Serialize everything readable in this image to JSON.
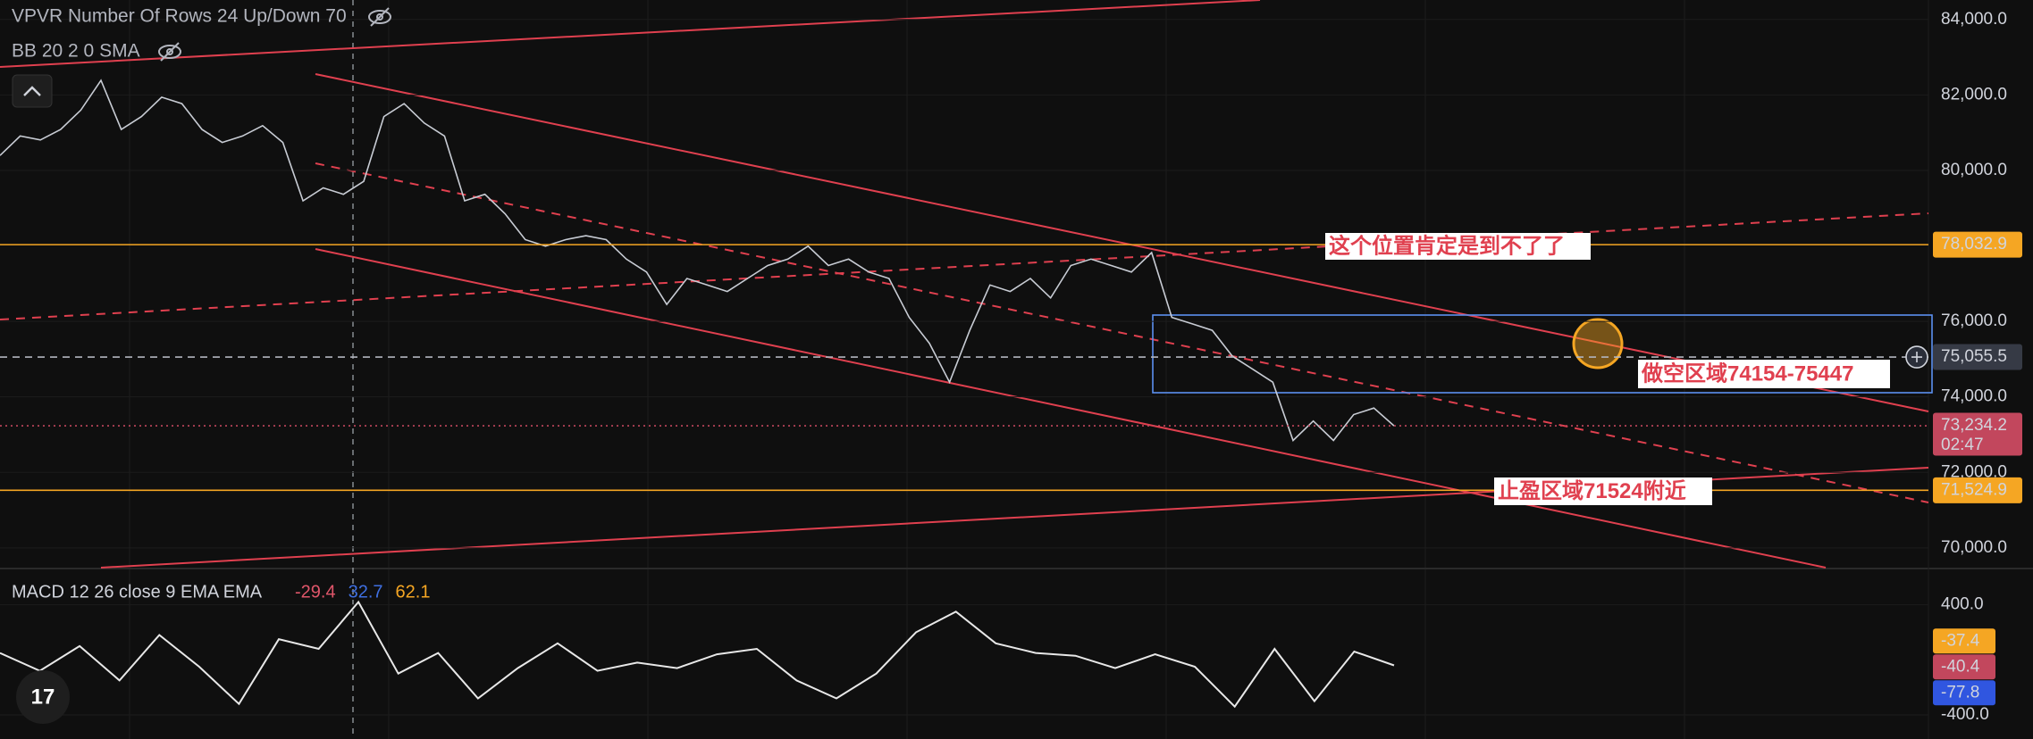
{
  "chart_data": [
    {
      "type": "line",
      "indicators": [
        "VPVR Number Of Rows 24 Up/Down 70",
        "BB 20 2 0 SMA"
      ],
      "values": [
        80396,
        80911,
        80808,
        81083,
        81598,
        82387,
        81083,
        81426,
        81941,
        81769,
        81083,
        80740,
        80911,
        81186,
        80740,
        79195,
        79538,
        79367,
        79710,
        81426,
        81769,
        81254,
        80911,
        79195,
        79367,
        78852,
        78166,
        77994,
        78166,
        78269,
        78166,
        77651,
        77308,
        76450,
        77136,
        76964,
        76793,
        77136,
        77479,
        77651,
        77994,
        77479,
        77651,
        77308,
        77136,
        76106,
        75420,
        74390,
        75763,
        76964,
        76793,
        77136,
        76621,
        77479,
        77651,
        77479,
        77308,
        77822,
        76106,
        75935,
        75763,
        75077,
        74734,
        74390,
        72846,
        73361,
        72846,
        73532,
        73704,
        73234
      ],
      "color": "#c8ccd4",
      "ylim": [
        69485,
        84515
      ],
      "yticks": [
        {
          "value": 84000,
          "label": "84,000.0"
        },
        {
          "value": 82000,
          "label": "82,000.0"
        },
        {
          "value": 80000,
          "label": "80,000.0"
        },
        {
          "value": 76000,
          "label": "76,000.0"
        },
        {
          "value": 74000,
          "label": "74,000.0"
        },
        {
          "value": 72000,
          "label": "72,000.0"
        },
        {
          "value": 70000,
          "label": "70,000.0"
        }
      ],
      "price_labels": [
        {
          "value": 78032.9,
          "label": "78,032.9",
          "color": "#f5a623",
          "line": "solid"
        },
        {
          "value": 75055.5,
          "label": "75,055.5",
          "color": "#363a45",
          "line": "dashed"
        },
        {
          "value": 73234.2,
          "label": "73,234.2",
          "countdown": "02:47",
          "color": "#c2475d",
          "line": "dotted"
        },
        {
          "value": 71524.9,
          "label": "71,524.9",
          "color": "#f5a623",
          "line": "solid"
        }
      ],
      "annotations": [
        "这个位置肯定是到不了了",
        "做空区域74154-75447",
        "止盈区域71524附近"
      ]
    },
    {
      "type": "line",
      "title": "MACD 12 26 close 9 EMA EMA",
      "legend_values": [
        {
          "value": -29.4,
          "color": "#e0566a"
        },
        {
          "value": 32.7,
          "color": "#3f6fe0"
        },
        {
          "value": 62.1,
          "color": "#f5a623"
        }
      ],
      "values": [
        50,
        -80,
        100,
        -150,
        180,
        -50,
        -320,
        150,
        80,
        420,
        -100,
        50,
        -280,
        -60,
        120,
        -80,
        -20,
        -60,
        40,
        80,
        -150,
        -280,
        -100,
        200,
        350,
        120,
        50,
        30,
        -60,
        40,
        -50,
        -340,
        80,
        -300,
        60,
        -40
      ],
      "color": "#e8e8e8",
      "ylim": [
        -575,
        654
      ],
      "yticks": [
        {
          "value": 400,
          "label": "400.0"
        },
        {
          "value": -400,
          "label": "-400.0"
        }
      ],
      "price_labels": [
        {
          "value": -37.4,
          "label": "-37.4",
          "color": "#f5a623"
        },
        {
          "value": -40.4,
          "label": "-40.4",
          "color": "#c2475d"
        },
        {
          "value": -77.8,
          "label": "-77.8",
          "color": "#3056e0"
        }
      ]
    }
  ]
}
